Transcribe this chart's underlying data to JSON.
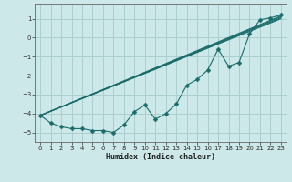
{
  "x": [
    0,
    1,
    2,
    3,
    4,
    5,
    6,
    7,
    8,
    9,
    10,
    11,
    12,
    13,
    14,
    15,
    16,
    17,
    18,
    19,
    20,
    21,
    22,
    23
  ],
  "line_data": [
    -4.1,
    -4.5,
    -4.7,
    -4.8,
    -4.8,
    -4.9,
    -4.9,
    -5.0,
    -4.6,
    -3.9,
    -3.55,
    -4.3,
    -4.0,
    -3.5,
    -2.5,
    -2.2,
    -1.7,
    -0.6,
    -1.5,
    -1.3,
    0.2,
    0.95,
    1.05,
    1.2
  ],
  "straight_lines": [
    [
      -4.1,
      1.15
    ],
    [
      -4.1,
      1.1
    ],
    [
      -4.1,
      1.05
    ],
    [
      -4.1,
      1.0
    ]
  ],
  "bg_color": "#cce8e8",
  "grid_color": "#aacece",
  "line_color": "#1a6b6b",
  "marker": "D",
  "marker_size": 2.5,
  "xlabel": "Humidex (Indice chaleur)",
  "xlim": [
    -0.5,
    23.5
  ],
  "ylim": [
    -5.5,
    1.8
  ],
  "yticks": [
    1,
    0,
    -1,
    -2,
    -3,
    -4,
    -5
  ],
  "xticks": [
    0,
    1,
    2,
    3,
    4,
    5,
    6,
    7,
    8,
    9,
    10,
    11,
    12,
    13,
    14,
    15,
    16,
    17,
    18,
    19,
    20,
    21,
    22,
    23
  ]
}
